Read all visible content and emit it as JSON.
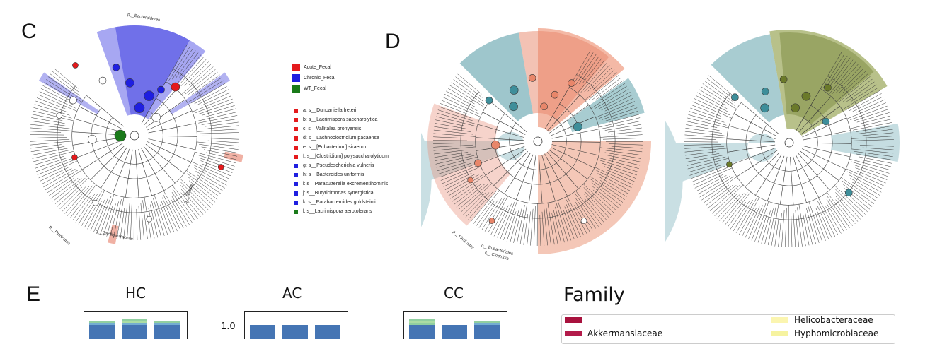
{
  "panels": {
    "c": "C",
    "d": "D",
    "e": "E"
  },
  "colors": {
    "acute": "#e41a1c",
    "chronic": "#1f1fe0",
    "wt": "#1a7a1a",
    "salmon": "#e8866a",
    "teal": "#3e8e9a",
    "olive": "#6b7a2a",
    "lightgreen": "#b5d6b5",
    "lightblue": "#bcd6dc"
  },
  "legend_groups": [
    {
      "label": "Acute_Fecal",
      "color": "#e41a1c"
    },
    {
      "label": "Chronic_Fecal",
      "color": "#1f1fe0"
    },
    {
      "label": "WT_Fecal",
      "color": "#1a7a1a"
    }
  ],
  "legend_taxa": [
    {
      "label": "a: s__Duncaniella freteri",
      "color": "#e41a1c"
    },
    {
      "label": "b: s__Lacrimispora saccharolytica",
      "color": "#e41a1c"
    },
    {
      "label": "c: s__Vallitalea pronyensis",
      "color": "#e41a1c"
    },
    {
      "label": "d: s__Lachnoclostridium pacaense",
      "color": "#e41a1c"
    },
    {
      "label": "e: s__[Eubacterium] siraeum",
      "color": "#e41a1c"
    },
    {
      "label": "f: s__[Clostridium] polysaccharolyticum",
      "color": "#e41a1c"
    },
    {
      "label": "g: s__Pseudescherichia vulneris",
      "color": "#1f1fe0"
    },
    {
      "label": "h: s__Bacteroides uniformis",
      "color": "#1f1fe0"
    },
    {
      "label": "i: s__Parasutterella excrementihominis",
      "color": "#1f1fe0"
    },
    {
      "label": "j: s__Butyricimonas synergistica",
      "color": "#1f1fe0"
    },
    {
      "label": "k: s__Parabacteroides goldsteinii",
      "color": "#1f1fe0"
    },
    {
      "label": "l: s__Lacrimispora aerotolerans",
      "color": "#1a7a1a"
    }
  ],
  "cladogram_c_labels": {
    "firmicutes": "p__Firmicutes",
    "oscillospiraceae": "g__Oscillospiraceae",
    "bacteroidetes": "p__Bacteroidetes",
    "blautia": "g__Blautia"
  },
  "cladogram_d_labels": {
    "firmicutes": "p__Firmicutes",
    "eubacteriales": "o__Eubacteriales",
    "clostridia": "c__Clostridia"
  },
  "bar_titles": {
    "hc": "HC",
    "ac": "AC",
    "cc": "CC"
  },
  "y_tick": "1.0",
  "family_title": "Family",
  "family_items": [
    {
      "label": "",
      "color": "#a8123e"
    },
    {
      "label": "Akkermansiaceae",
      "color": "#b31b4a"
    },
    {
      "label": "Helicobacteraceae",
      "color": "#fbf5b0"
    },
    {
      "label": "Hyphomicrobiaceae",
      "color": "#f6f3a0"
    }
  ],
  "bar_colors": [
    "#4575b4",
    "#74add1",
    "#91cfa0",
    "#abdda4"
  ]
}
